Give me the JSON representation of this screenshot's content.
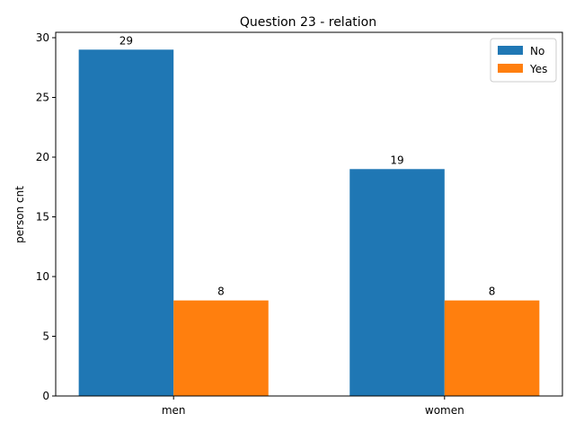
{
  "chart_data": {
    "type": "bar",
    "title": "Question 23 - relation",
    "xlabel": "",
    "ylabel": "person cnt",
    "categories": [
      "men",
      "women"
    ],
    "series": [
      {
        "name": "No",
        "values": [
          29,
          19
        ],
        "color": "#1f77b4"
      },
      {
        "name": "Yes",
        "values": [
          8,
          8
        ],
        "color": "#ff7f0e"
      }
    ],
    "ylim": [
      0,
      30.45
    ],
    "yticks": [
      0,
      5,
      10,
      15,
      20,
      25,
      30
    ],
    "grid": false,
    "legend_position": "top-right"
  }
}
